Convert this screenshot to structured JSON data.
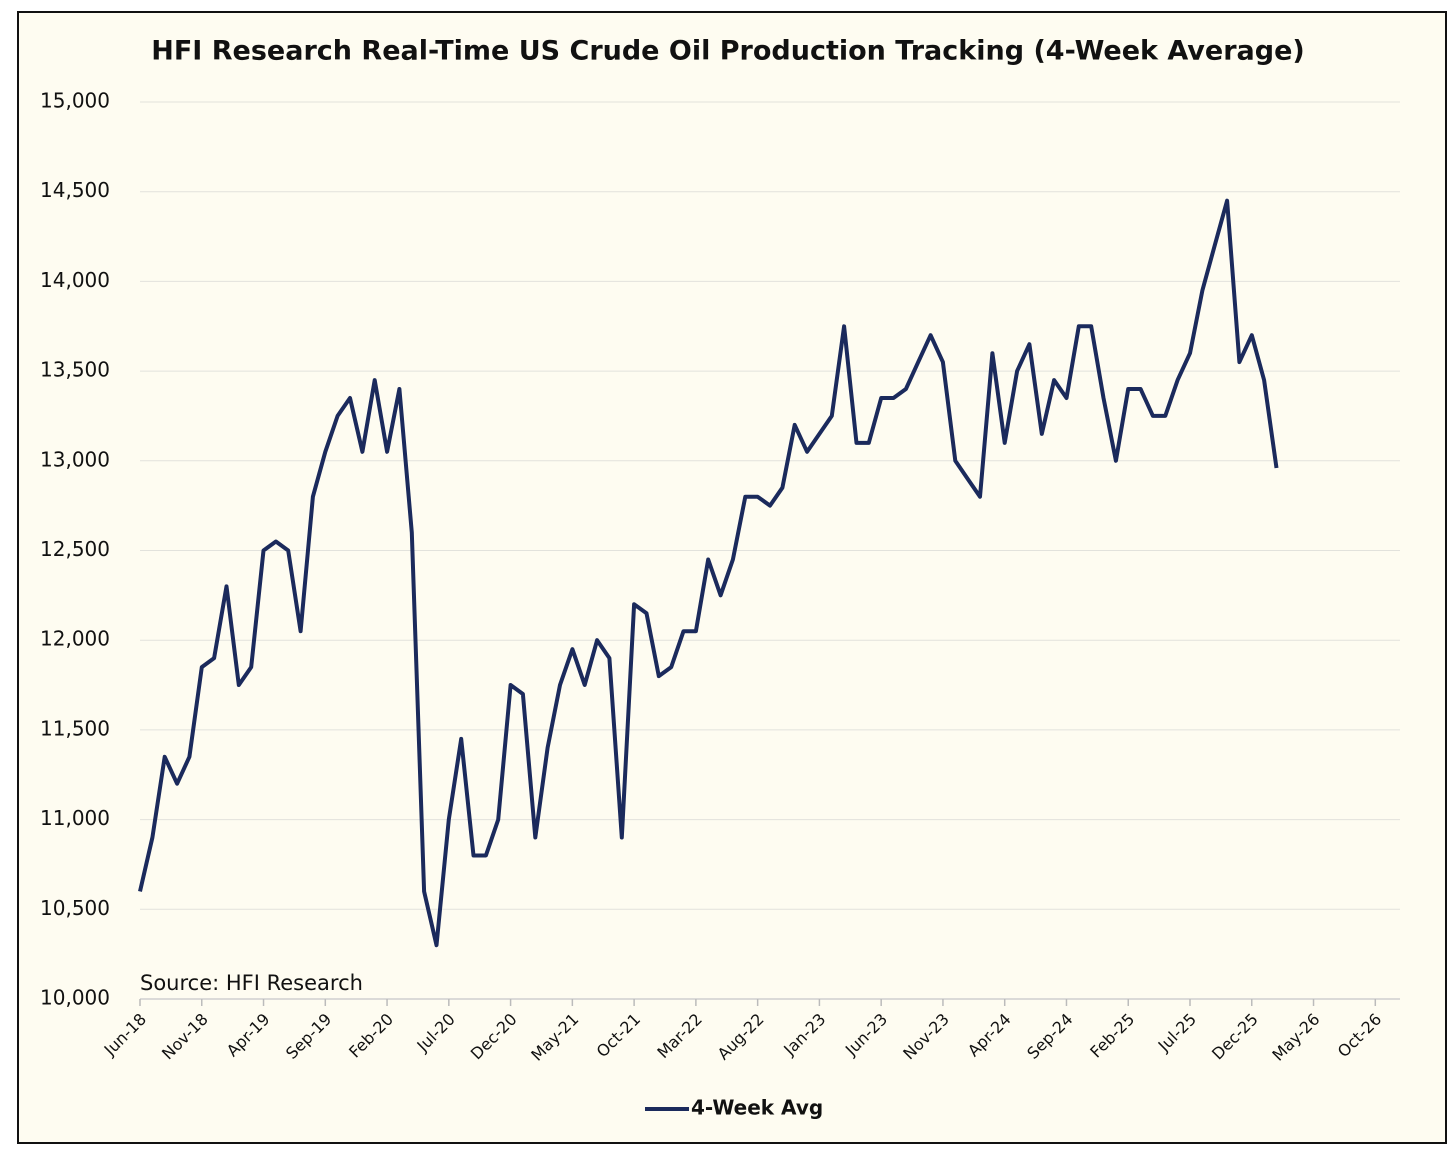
{
  "chart_data": {
    "type": "line",
    "title": "HFI Research Real-Time US Crude Oil Production Tracking (4-Week Average)",
    "annotation": "Source: HFI Research",
    "x": [
      "2018-06",
      "2018-07",
      "2018-08",
      "2018-09",
      "2018-10",
      "2018-11",
      "2018-12",
      "2019-01",
      "2019-02",
      "2019-03",
      "2019-04",
      "2019-05",
      "2019-06",
      "2019-07",
      "2019-08",
      "2019-09",
      "2019-10",
      "2019-11",
      "2019-12",
      "2020-01",
      "2020-02",
      "2020-03",
      "2020-04",
      "2020-05",
      "2020-06",
      "2020-07",
      "2020-08",
      "2020-09",
      "2020-10",
      "2020-11",
      "2020-12",
      "2021-01",
      "2021-02",
      "2021-03",
      "2021-04",
      "2021-05",
      "2021-06",
      "2021-07",
      "2021-08",
      "2021-09",
      "2021-10",
      "2021-11",
      "2021-12",
      "2022-01",
      "2022-02",
      "2022-03",
      "2022-04",
      "2022-05",
      "2022-06",
      "2022-07",
      "2022-08",
      "2022-09",
      "2022-10",
      "2022-11",
      "2022-12",
      "2023-01",
      "2023-02",
      "2023-03",
      "2023-04",
      "2023-05",
      "2023-06",
      "2023-07",
      "2023-08",
      "2023-09",
      "2023-10",
      "2023-11",
      "2023-12",
      "2024-01",
      "2024-02",
      "2024-03",
      "2024-04",
      "2024-05",
      "2024-06",
      "2024-07",
      "2024-08",
      "2024-09",
      "2024-10",
      "2024-11",
      "2024-12",
      "2025-01",
      "2025-02",
      "2025-03",
      "2025-04",
      "2025-05",
      "2025-06",
      "2025-07",
      "2025-08",
      "2025-09",
      "2025-10",
      "2025-11",
      "2025-12",
      "2026-01",
      "2026-02"
    ],
    "series": [
      {
        "name": "4-Week Avg",
        "color": "#1b2a5c",
        "values": [
          10600,
          10900,
          11350,
          11200,
          11350,
          11850,
          11900,
          12300,
          11750,
          11850,
          12500,
          12550,
          12500,
          12050,
          12800,
          13050,
          13250,
          13350,
          13050,
          13450,
          13050,
          13400,
          12600,
          10600,
          10300,
          11000,
          11450,
          10800,
          10800,
          11000,
          11750,
          11700,
          10900,
          11400,
          11750,
          11950,
          11750,
          12000,
          11900,
          10900,
          12200,
          12150,
          11800,
          11850,
          12050,
          12050,
          12450,
          12250,
          12450,
          12800,
          12800,
          12750,
          12850,
          13200,
          13050,
          13150,
          13250,
          13750,
          13100,
          13100,
          13350,
          13350,
          13400,
          13550,
          13700,
          13550,
          13000,
          12900,
          12800,
          13600,
          13100,
          13500,
          13650,
          13150,
          13450,
          13350,
          13750,
          13750,
          13350,
          13000,
          13400,
          13400,
          13250,
          13250,
          13450,
          13600,
          13950,
          14200,
          14450,
          13550,
          13700,
          13450,
          12960
        ]
      }
    ],
    "xlim": [
      "2018-06",
      "2026-12"
    ],
    "xticks": [
      {
        "value": "2018-06",
        "label": "Jun-18"
      },
      {
        "value": "2018-11",
        "label": "Nov-18"
      },
      {
        "value": "2019-04",
        "label": "Apr-19"
      },
      {
        "value": "2019-09",
        "label": "Sep-19"
      },
      {
        "value": "2020-02",
        "label": "Feb-20"
      },
      {
        "value": "2020-07",
        "label": "Jul-20"
      },
      {
        "value": "2020-12",
        "label": "Dec-20"
      },
      {
        "value": "2021-05",
        "label": "May-21"
      },
      {
        "value": "2021-10",
        "label": "Oct-21"
      },
      {
        "value": "2022-03",
        "label": "Mar-22"
      },
      {
        "value": "2022-08",
        "label": "Aug-22"
      },
      {
        "value": "2023-01",
        "label": "Jan-23"
      },
      {
        "value": "2023-06",
        "label": "Jun-23"
      },
      {
        "value": "2023-11",
        "label": "Nov-23"
      },
      {
        "value": "2024-04",
        "label": "Apr-24"
      },
      {
        "value": "2024-09",
        "label": "Sep-24"
      },
      {
        "value": "2025-02",
        "label": "Feb-25"
      },
      {
        "value": "2025-07",
        "label": "Jul-25"
      },
      {
        "value": "2025-12",
        "label": "Dec-25"
      },
      {
        "value": "2026-05",
        "label": "May-26"
      },
      {
        "value": "2026-10",
        "label": "Oct-26"
      }
    ],
    "ylim": [
      10000,
      15000
    ],
    "yticks": [
      {
        "value": 10000,
        "label": "10,000"
      },
      {
        "value": 10500,
        "label": "10,500"
      },
      {
        "value": 11000,
        "label": "11,000"
      },
      {
        "value": 11500,
        "label": "11,500"
      },
      {
        "value": 12000,
        "label": "12,000"
      },
      {
        "value": 12500,
        "label": "12,500"
      },
      {
        "value": 13000,
        "label": "13,000"
      },
      {
        "value": 13500,
        "label": "13,500"
      },
      {
        "value": 14000,
        "label": "14,000"
      },
      {
        "value": 14500,
        "label": "14,500"
      },
      {
        "value": 15000,
        "label": "15,000"
      }
    ],
    "grid": true,
    "legend": "bottom"
  }
}
